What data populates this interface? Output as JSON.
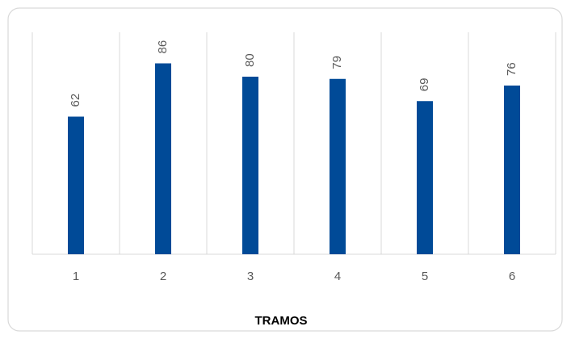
{
  "chart_data": {
    "type": "bar",
    "x_label": "TRAMOS",
    "categories": [
      "1",
      "2",
      "3",
      "4",
      "5",
      "6"
    ],
    "values": [
      62,
      86,
      80,
      79,
      69,
      76
    ],
    "color": "#004a97",
    "ylim": [
      0,
      100
    ],
    "grid": false
  }
}
